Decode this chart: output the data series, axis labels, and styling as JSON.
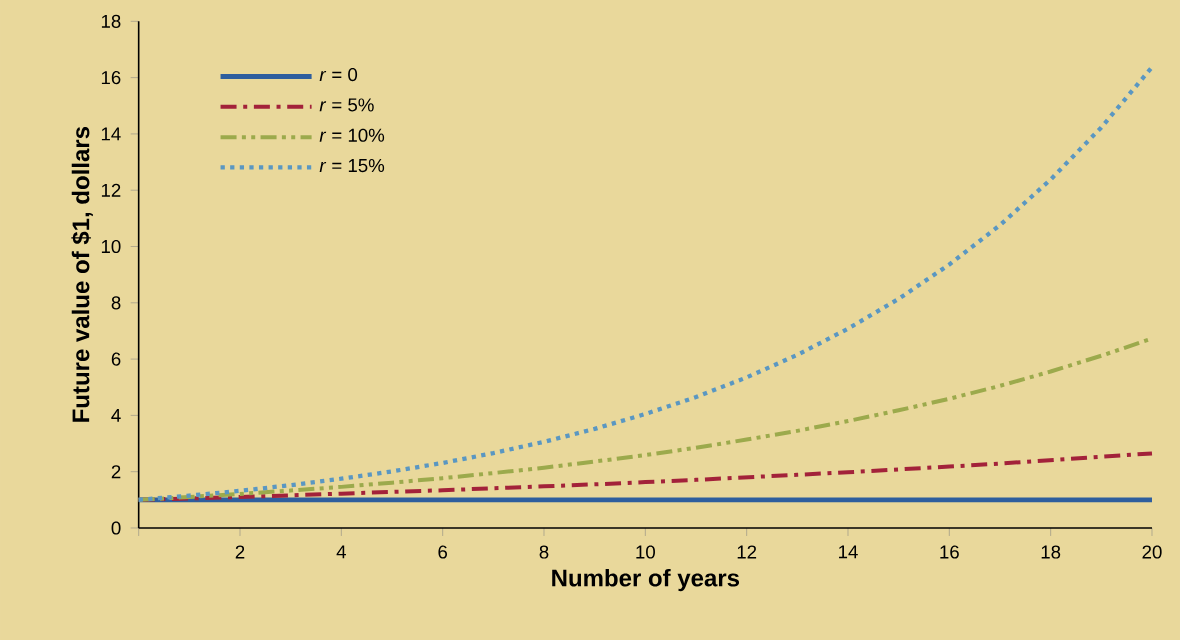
{
  "chart_data": {
    "type": "line",
    "xlabel": "Number of years",
    "ylabel": "Future value of $1, dollars",
    "x": [
      0,
      1,
      2,
      3,
      4,
      5,
      6,
      7,
      8,
      9,
      10,
      11,
      12,
      13,
      14,
      15,
      16,
      17,
      18,
      19,
      20
    ],
    "series": [
      {
        "name": "*r* = 0",
        "color": "#2e5e9e",
        "line_style": "solid",
        "values": [
          1,
          1,
          1,
          1,
          1,
          1,
          1,
          1,
          1,
          1,
          1,
          1,
          1,
          1,
          1,
          1,
          1,
          1,
          1,
          1,
          1
        ]
      },
      {
        "name": "*r* = 5%",
        "color": "#a3223a",
        "line_style": "dashdot",
        "values": [
          1,
          1.05,
          1.1,
          1.16,
          1.22,
          1.28,
          1.34,
          1.41,
          1.48,
          1.55,
          1.63,
          1.71,
          1.8,
          1.89,
          1.98,
          2.08,
          2.18,
          2.29,
          2.41,
          2.53,
          2.65
        ]
      },
      {
        "name": "*r* = 10%",
        "color": "#9caa4c",
        "line_style": "dashdotdot",
        "values": [
          1,
          1.1,
          1.21,
          1.33,
          1.46,
          1.61,
          1.77,
          1.95,
          2.14,
          2.36,
          2.59,
          2.85,
          3.14,
          3.45,
          3.8,
          4.18,
          4.59,
          5.05,
          5.56,
          6.12,
          6.73
        ]
      },
      {
        "name": "*r* = 15%",
        "color": "#5a97c2",
        "line_style": "dotted",
        "values": [
          1,
          1.15,
          1.32,
          1.52,
          1.75,
          2.01,
          2.31,
          2.66,
          3.06,
          3.52,
          4.05,
          4.65,
          5.35,
          6.15,
          7.08,
          8.14,
          9.36,
          10.76,
          12.38,
          14.23,
          16.37
        ]
      }
    ],
    "xlim": [
      0,
      20
    ],
    "xticks": [
      {
        "value": 0,
        "label": null
      },
      2,
      4,
      6,
      8,
      10,
      12,
      14,
      16,
      18,
      20
    ],
    "ylim": [
      0,
      18
    ],
    "yticks": [
      0,
      2,
      4,
      6,
      8,
      10,
      12,
      14,
      16,
      18
    ],
    "grid": false,
    "legend": "top left"
  }
}
